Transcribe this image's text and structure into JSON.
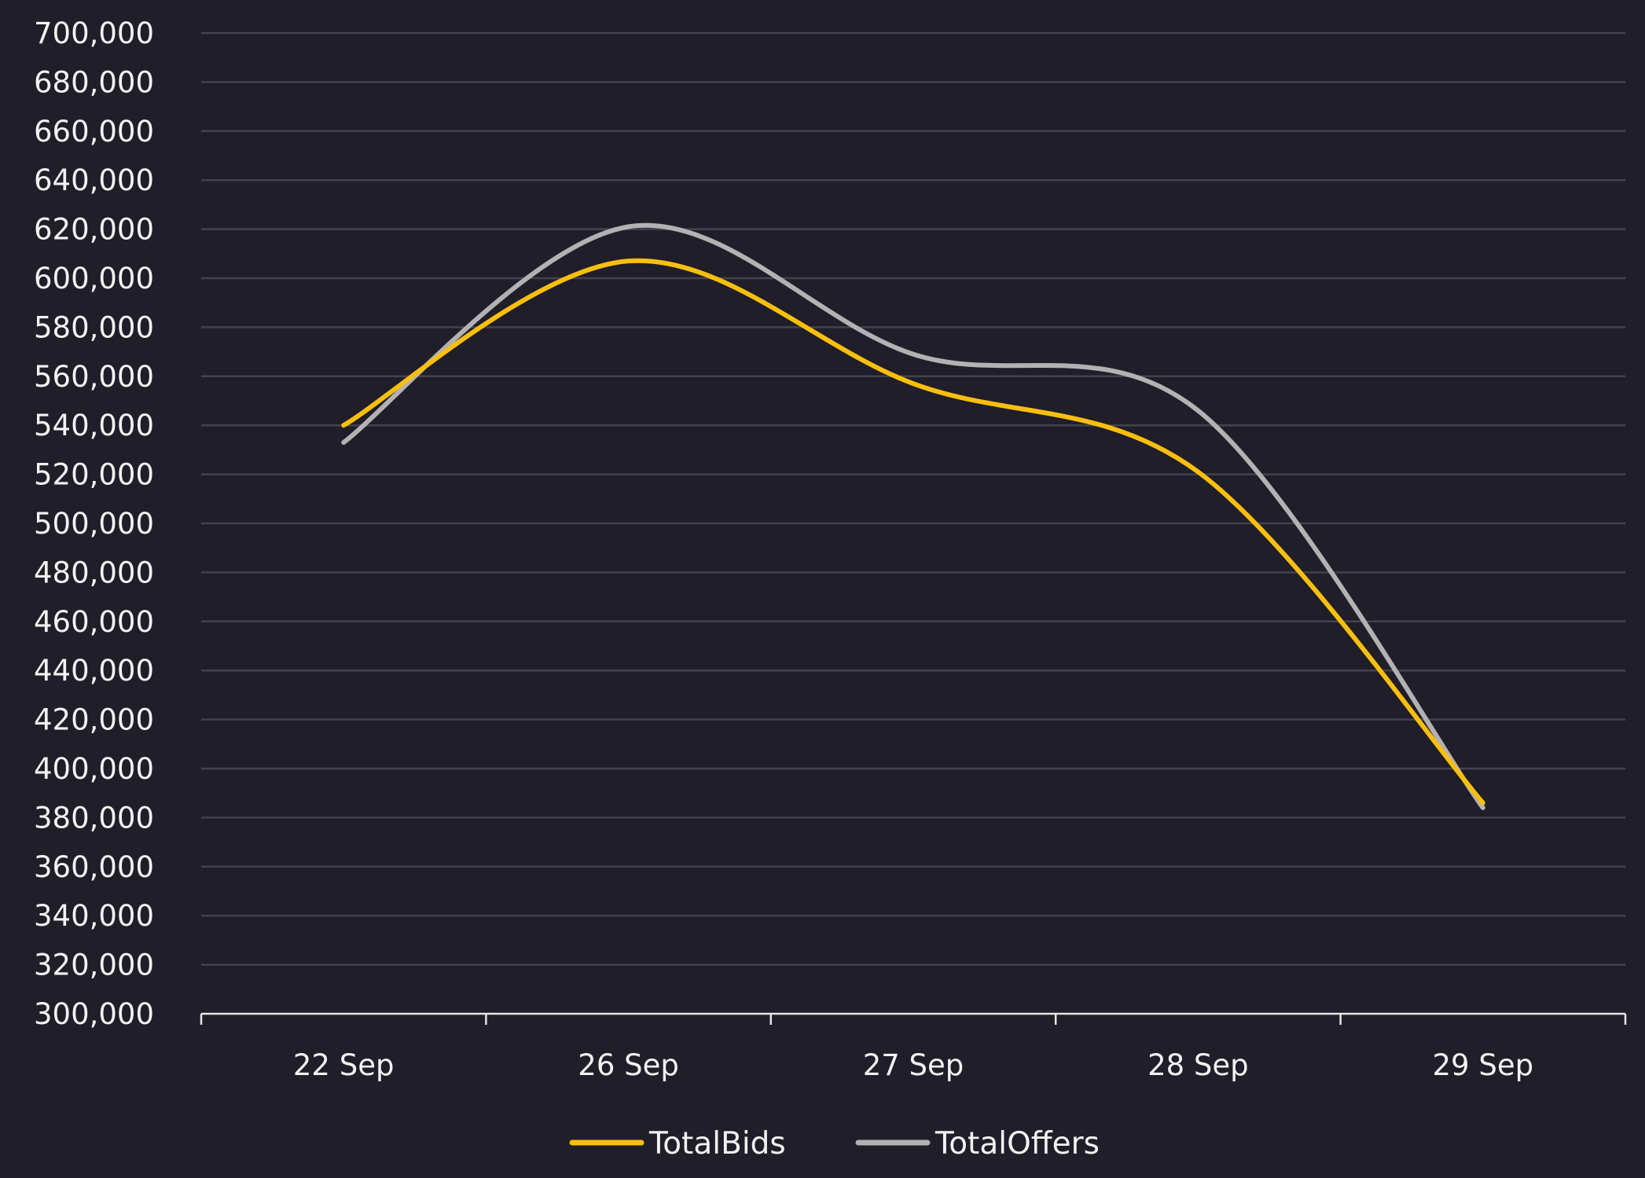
{
  "chart_data": {
    "type": "line",
    "smooth": true,
    "title": "",
    "xlabel": "",
    "ylabel": "",
    "categories": [
      "22 Sep",
      "26 Sep",
      "27 Sep",
      "28 Sep",
      "29 Sep"
    ],
    "series": [
      {
        "name": "TotalBids",
        "color": "#f9bf0f",
        "values": [
          540000,
          607000,
          557000,
          521000,
          386000
        ]
      },
      {
        "name": "TotalOffers",
        "color": "#b3b1b3",
        "values": [
          533000,
          621000,
          569000,
          546000,
          384000
        ]
      }
    ],
    "ylim": [
      300000,
      700000
    ],
    "yticks": [
      300000,
      320000,
      340000,
      360000,
      380000,
      400000,
      420000,
      440000,
      460000,
      480000,
      500000,
      520000,
      540000,
      560000,
      580000,
      600000,
      620000,
      640000,
      660000,
      680000,
      700000
    ],
    "ytick_labels": [
      "300,000",
      "320,000",
      "340,000",
      "360,000",
      "380,000",
      "400,000",
      "420,000",
      "440,000",
      "460,000",
      "480,000",
      "500,000",
      "520,000",
      "540,000",
      "560,000",
      "580,000",
      "600,000",
      "620,000",
      "640,000",
      "660,000",
      "680,000",
      "700,000"
    ],
    "grid": true,
    "legend_position": "bottom-center"
  },
  "colors": {
    "background": "#1f1e29",
    "gridline": "#44434c",
    "axis": "#e6e6e6",
    "text": "#f2f2f2"
  }
}
